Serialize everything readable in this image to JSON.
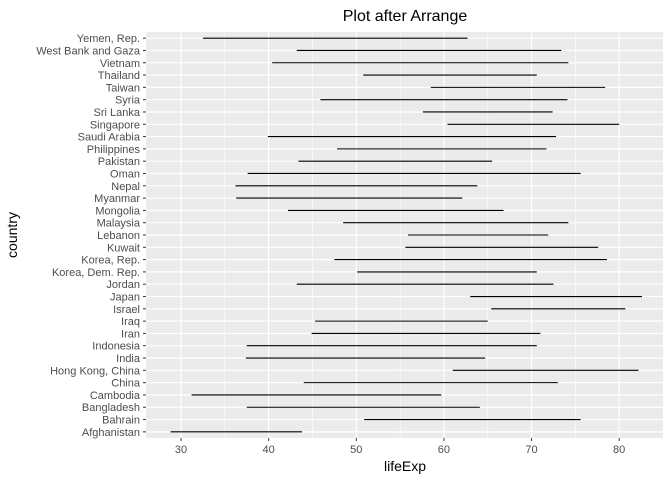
{
  "chart_data": {
    "type": "range",
    "title": "Plot after Arrange",
    "xlabel": "lifeExp",
    "ylabel": "country",
    "xlim": [
      26,
      85
    ],
    "x_ticks": [
      30,
      40,
      50,
      60,
      70,
      80
    ],
    "grid": true,
    "panel_background": "#ebebeb",
    "grid_color": "#ffffff",
    "segment_color": "#000000",
    "categories": [
      "Afghanistan",
      "Bahrain",
      "Bangladesh",
      "Cambodia",
      "China",
      "Hong Kong, China",
      "India",
      "Indonesia",
      "Iran",
      "Iraq",
      "Israel",
      "Japan",
      "Jordan",
      "Korea, Dem. Rep.",
      "Korea, Rep.",
      "Kuwait",
      "Lebanon",
      "Malaysia",
      "Mongolia",
      "Myanmar",
      "Nepal",
      "Oman",
      "Pakistan",
      "Philippines",
      "Saudi Arabia",
      "Singapore",
      "Sri Lanka",
      "Syria",
      "Taiwan",
      "Thailand",
      "Vietnam",
      "West Bank and Gaza",
      "Yemen, Rep."
    ],
    "min": [
      28.8,
      50.9,
      37.5,
      31.2,
      44.0,
      61.0,
      37.4,
      37.5,
      44.9,
      45.3,
      65.4,
      63.0,
      43.2,
      50.1,
      47.5,
      55.6,
      55.9,
      48.5,
      42.2,
      36.3,
      36.2,
      37.6,
      43.4,
      47.8,
      39.9,
      60.4,
      57.6,
      45.9,
      58.5,
      50.8,
      40.4,
      43.2,
      32.5
    ],
    "max": [
      43.8,
      75.6,
      64.1,
      59.7,
      73.0,
      82.2,
      64.7,
      70.6,
      71.0,
      65.0,
      80.7,
      82.6,
      72.5,
      70.6,
      78.6,
      77.6,
      71.9,
      74.2,
      66.8,
      62.1,
      63.8,
      75.6,
      65.5,
      71.7,
      72.8,
      80.0,
      72.4,
      74.1,
      78.4,
      70.6,
      74.2,
      73.4,
      62.7
    ]
  }
}
